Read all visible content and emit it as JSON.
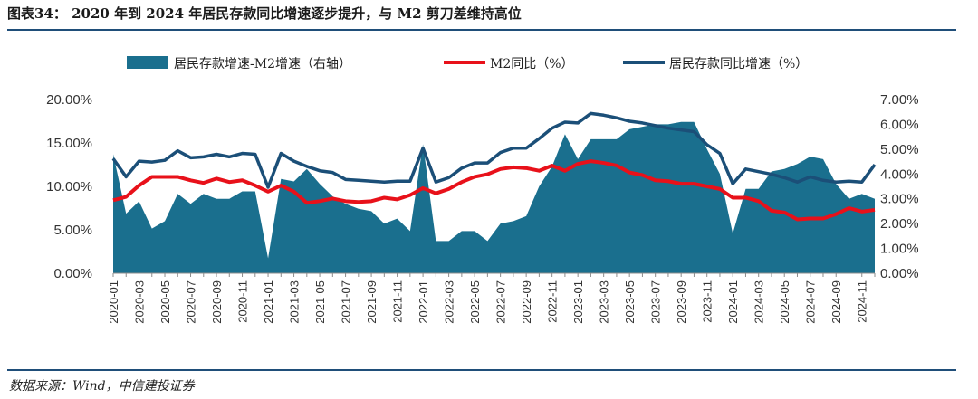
{
  "figure": {
    "title": "图表34： 2020 年到 2024 年居民存款同比增速逐步提升，与 M2 剪刀差维持高位",
    "source": "数据来源：Wind，中信建投证券"
  },
  "colors": {
    "area": "#1a6f8e",
    "m2_line": "#e8111a",
    "deposit_line": "#1b4f78",
    "rule": "#1f4e79"
  },
  "chart_data": {
    "type": "line",
    "x": [
      "2020-01",
      "2020-02",
      "2020-03",
      "2020-04",
      "2020-05",
      "2020-06",
      "2020-07",
      "2020-08",
      "2020-09",
      "2020-10",
      "2020-11",
      "2020-12",
      "2021-01",
      "2021-02",
      "2021-03",
      "2021-04",
      "2021-05",
      "2021-06",
      "2021-07",
      "2021-08",
      "2021-09",
      "2021-10",
      "2021-11",
      "2021-12",
      "2022-01",
      "2022-02",
      "2022-03",
      "2022-04",
      "2022-05",
      "2022-06",
      "2022-07",
      "2022-08",
      "2022-09",
      "2022-10",
      "2022-11",
      "2022-12",
      "2023-01",
      "2023-02",
      "2023-03",
      "2023-04",
      "2023-05",
      "2023-06",
      "2023-07",
      "2023-08",
      "2023-09",
      "2023-10",
      "2023-11",
      "2023-12",
      "2024-01",
      "2024-02",
      "2024-03",
      "2024-04",
      "2024-05",
      "2024-06",
      "2024-07",
      "2024-08",
      "2024-09",
      "2024-10",
      "2024-11",
      "2024-12"
    ],
    "x_tick_labels": [
      "2020-01",
      "2020-03",
      "2020-05",
      "2020-07",
      "2020-09",
      "2020-11",
      "2021-01",
      "2021-03",
      "2021-05",
      "2021-07",
      "2021-09",
      "2021-11",
      "2022-01",
      "2022-03",
      "2022-05",
      "2022-07",
      "2022-09",
      "2022-11",
      "2023-01",
      "2023-03",
      "2023-05",
      "2023-07",
      "2023-09",
      "2023-11",
      "2024-01",
      "2024-03",
      "2024-05",
      "2024-07",
      "2024-09",
      "2024-11"
    ],
    "y_left": {
      "range": [
        0,
        20
      ],
      "ticks": [
        "0.00%",
        "5.00%",
        "10.00%",
        "15.00%",
        "20.00%"
      ]
    },
    "y_right": {
      "range": [
        0,
        7
      ],
      "ticks": [
        "0.00%",
        "1.00%",
        "2.00%",
        "3.00%",
        "4.00%",
        "5.00%",
        "6.00%",
        "7.00%"
      ]
    },
    "legend_position": "top",
    "series": [
      {
        "name": "居民存款增速-M2增速（右轴）",
        "type": "area",
        "axis": "right",
        "values": [
          4.8,
          2.4,
          2.9,
          1.8,
          2.1,
          3.2,
          2.8,
          3.2,
          3.0,
          3.0,
          3.3,
          3.3,
          0.6,
          3.8,
          3.7,
          4.2,
          3.6,
          3.1,
          2.8,
          2.6,
          2.5,
          2.0,
          2.2,
          1.7,
          5.2,
          1.3,
          1.3,
          1.7,
          1.7,
          1.3,
          2.0,
          2.1,
          2.3,
          3.5,
          4.3,
          5.6,
          4.6,
          5.4,
          5.4,
          5.4,
          5.8,
          5.9,
          6.0,
          6.0,
          6.1,
          6.1,
          5.0,
          4.0,
          1.6,
          3.4,
          3.4,
          4.1,
          4.2,
          4.4,
          4.7,
          4.6,
          3.6,
          3.0,
          3.2,
          3.0
        ]
      },
      {
        "name": "M2同比（%）",
        "type": "line",
        "axis": "left",
        "values": [
          8.4,
          8.8,
          10.1,
          11.1,
          11.1,
          11.1,
          10.7,
          10.4,
          10.9,
          10.5,
          10.7,
          10.1,
          9.4,
          10.1,
          9.4,
          8.1,
          8.3,
          8.6,
          8.3,
          8.2,
          8.3,
          8.7,
          8.5,
          9.0,
          9.8,
          9.2,
          9.7,
          10.5,
          11.1,
          11.4,
          12.0,
          12.2,
          12.1,
          11.8,
          12.4,
          11.8,
          12.6,
          12.9,
          12.7,
          12.4,
          11.6,
          11.3,
          10.7,
          10.6,
          10.3,
          10.3,
          10.0,
          9.7,
          8.7,
          8.7,
          8.3,
          7.2,
          7.0,
          6.2,
          6.3,
          6.3,
          6.8,
          7.5,
          7.1,
          7.3
        ]
      },
      {
        "name": "居民存款同比增速（%）",
        "type": "line",
        "axis": "left",
        "values": [
          13.2,
          11.1,
          12.9,
          12.8,
          13.0,
          14.1,
          13.3,
          13.4,
          13.7,
          13.4,
          13.8,
          13.7,
          9.9,
          13.8,
          12.9,
          12.3,
          11.8,
          11.6,
          10.8,
          10.7,
          10.6,
          10.5,
          10.6,
          10.6,
          14.4,
          10.5,
          11.0,
          12.1,
          12.7,
          12.7,
          13.9,
          14.4,
          14.4,
          15.5,
          16.7,
          17.4,
          17.3,
          18.4,
          18.2,
          17.9,
          17.5,
          17.3,
          17.0,
          16.7,
          16.5,
          16.3,
          14.8,
          13.8,
          10.3,
          12.0,
          11.7,
          11.4,
          11.0,
          10.5,
          11.1,
          10.7,
          10.5,
          10.6,
          10.5,
          12.5
        ]
      }
    ]
  }
}
